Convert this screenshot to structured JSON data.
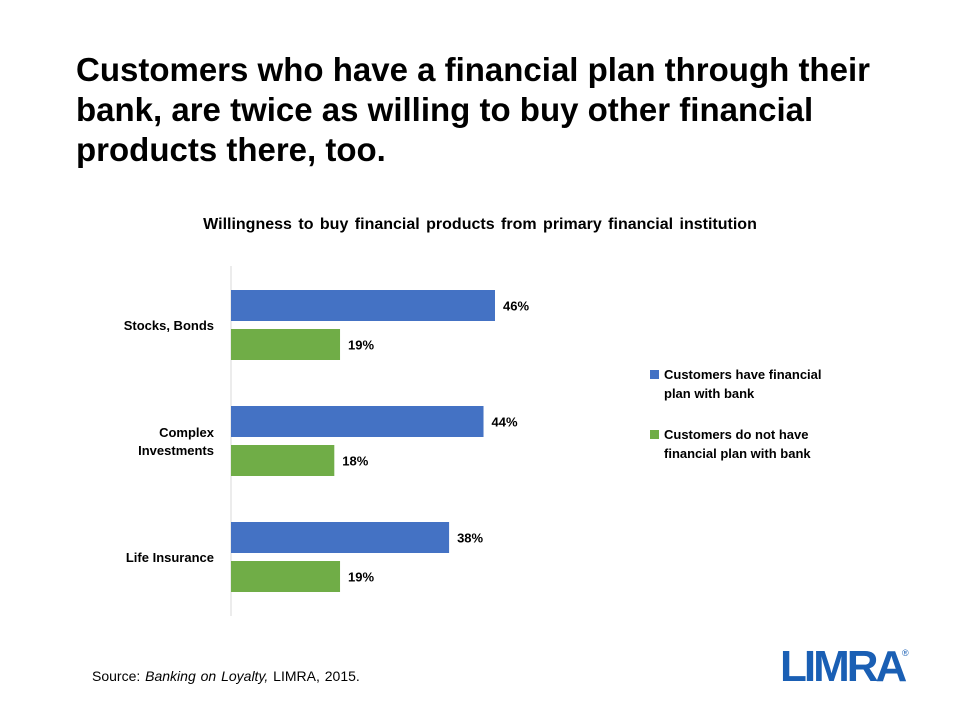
{
  "slide": {
    "title": "Customers who have a financial plan through their bank, are twice as willing to buy other financial products there, too.",
    "source_prefix": "Source: ",
    "source_title": "Banking on Loyalty,",
    "source_suffix": " LIMRA,  2015.",
    "logo_text": "LIMRA",
    "logo_mark": "®"
  },
  "colors": {
    "series1": "#4472C4",
    "series2": "#70AD47",
    "axis": "#d9d9d9",
    "logo": "#1a5fb4"
  },
  "chart_data": {
    "type": "bar",
    "orientation": "horizontal",
    "title": "Willingness to buy financial products from primary financial institution",
    "categories": [
      "Stocks, Bonds",
      "Complex Investments",
      "Life Insurance"
    ],
    "category_lines": [
      [
        "Stocks, Bonds"
      ],
      [
        "Complex",
        "Investments"
      ],
      [
        "Life Insurance"
      ]
    ],
    "series": [
      {
        "name": "Customers have financial plan with bank",
        "legend_lines": [
          "Customers have financial",
          "plan with bank"
        ],
        "values": [
          46,
          44,
          38
        ],
        "labels": [
          "46%",
          "44%",
          "38%"
        ]
      },
      {
        "name": "Customers do not have financial plan with bank",
        "legend_lines": [
          "Customers do not have",
          "financial plan with bank"
        ],
        "values": [
          19,
          18,
          19
        ],
        "labels": [
          "19%",
          "18%",
          "19%"
        ]
      }
    ],
    "value_unit": "%",
    "xlim": [
      0,
      100
    ],
    "grid": false,
    "legend_position": "right"
  }
}
